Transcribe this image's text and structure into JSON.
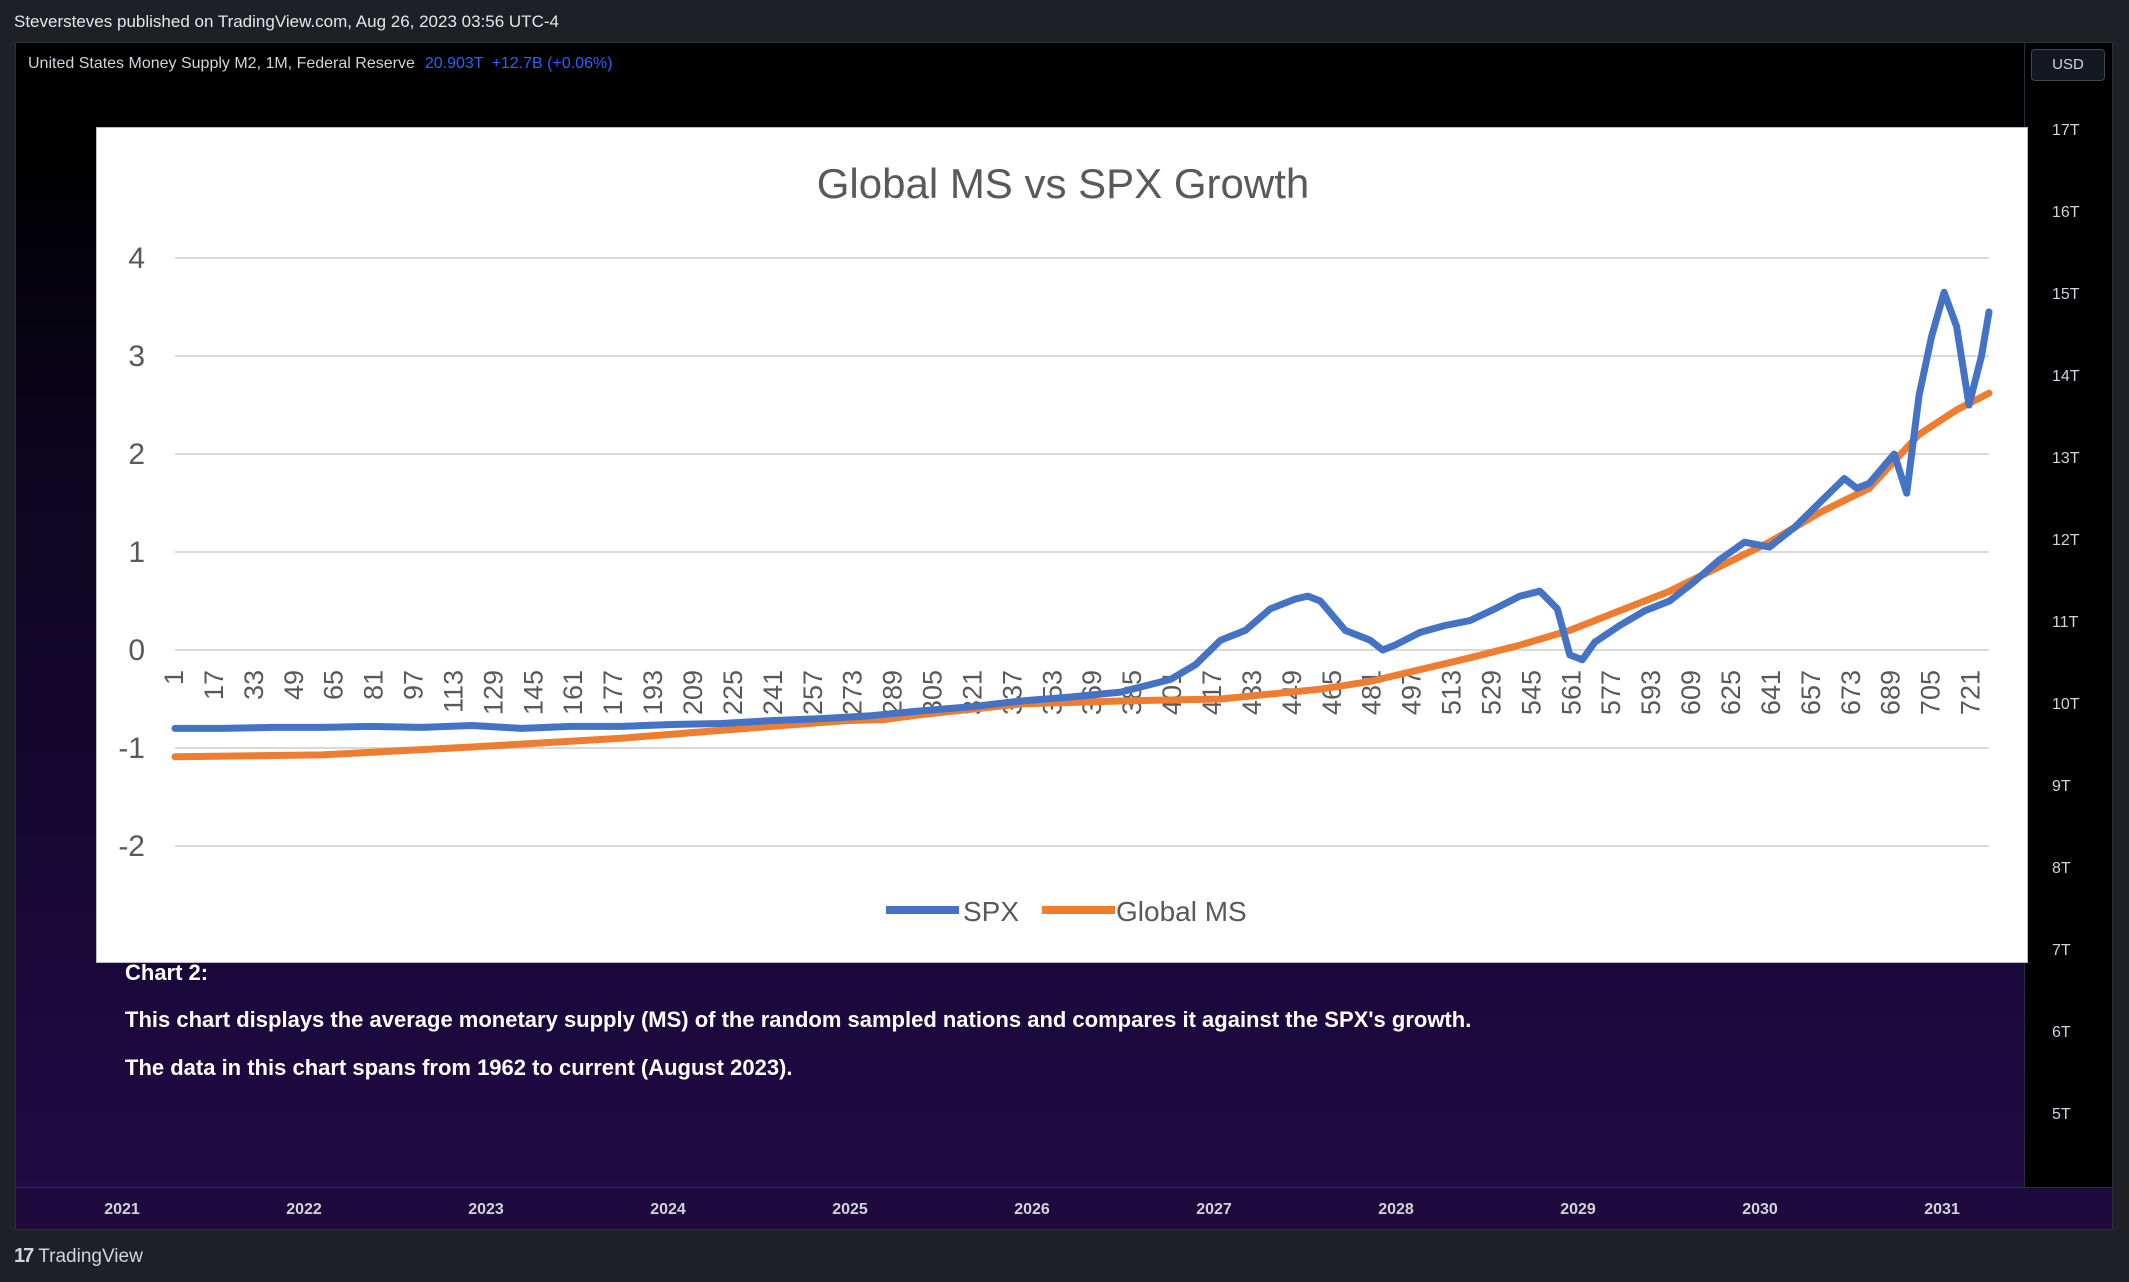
{
  "publisher": "Steversteves published on TradingView.com, Aug 26, 2023 03:56 UTC-4",
  "legend": {
    "symbol": "United States Money Supply M2, 1M, Federal Reserve",
    "value": "20.903T",
    "change": "+12.7B (+0.06%)"
  },
  "currency_button": "USD",
  "price_axis": [
    "17T",
    "16T",
    "15T",
    "14T",
    "13T",
    "12T",
    "11T",
    "10T",
    "9T",
    "8T",
    "7T",
    "6T",
    "5T"
  ],
  "time_axis": [
    "2021",
    "2022",
    "2023",
    "2024",
    "2025",
    "2026",
    "2027",
    "2028",
    "2029",
    "2030",
    "2031"
  ],
  "notes": {
    "heading": "Chart 2:",
    "line1": "This chart displays the average monetary supply (MS) of the random sampled nations and compares it against the SPX's growth.",
    "line2": "The data in this chart spans from 1962 to current (August 2023)."
  },
  "footer": {
    "logo": "17",
    "brand": "TradingView"
  },
  "colors": {
    "spx": "#4472c4",
    "ms": "#ed7d31",
    "grid": "#d9d9d9",
    "text": "#595959"
  },
  "chart_data": {
    "type": "line",
    "title": "Global MS vs SPX Growth",
    "xlabel": "",
    "ylabel": "",
    "ylim": [
      -3,
      4.5
    ],
    "yticks": [
      "4",
      "3",
      "2",
      "1",
      "0",
      "-1",
      "-2"
    ],
    "x_tick_labels": [
      "1",
      "17",
      "33",
      "49",
      "65",
      "81",
      "97",
      "113",
      "129",
      "145",
      "161",
      "177",
      "193",
      "209",
      "225",
      "241",
      "257",
      "273",
      "289",
      "305",
      "321",
      "337",
      "353",
      "369",
      "385",
      "401",
      "417",
      "433",
      "449",
      "465",
      "481",
      "497",
      "513",
      "529",
      "545",
      "561",
      "577",
      "593",
      "609",
      "625",
      "641",
      "657",
      "673",
      "689",
      "705",
      "721"
    ],
    "series": [
      {
        "name": "SPX",
        "x": [
          1,
          20,
          40,
          60,
          80,
          100,
          120,
          140,
          160,
          180,
          200,
          220,
          240,
          260,
          280,
          300,
          320,
          340,
          360,
          380,
          400,
          410,
          420,
          430,
          440,
          450,
          455,
          460,
          470,
          480,
          485,
          490,
          500,
          510,
          520,
          530,
          540,
          548,
          555,
          560,
          565,
          570,
          580,
          590,
          600,
          610,
          620,
          630,
          640,
          650,
          660,
          670,
          675,
          680,
          690,
          695,
          700,
          705,
          710,
          715,
          720,
          725,
          728
        ],
        "values": [
          -0.8,
          -0.8,
          -0.79,
          -0.79,
          -0.78,
          -0.79,
          -0.77,
          -0.8,
          -0.78,
          -0.78,
          -0.76,
          -0.75,
          -0.72,
          -0.7,
          -0.67,
          -0.62,
          -0.58,
          -0.52,
          -0.48,
          -0.43,
          -0.3,
          -0.15,
          0.1,
          0.2,
          0.42,
          0.52,
          0.55,
          0.5,
          0.2,
          0.1,
          0.0,
          0.05,
          0.18,
          0.25,
          0.3,
          0.42,
          0.55,
          0.6,
          0.42,
          -0.05,
          -0.1,
          0.08,
          0.25,
          0.4,
          0.5,
          0.7,
          0.92,
          1.1,
          1.05,
          1.25,
          1.5,
          1.75,
          1.65,
          1.7,
          2.0,
          1.6,
          2.6,
          3.2,
          3.65,
          3.3,
          2.5,
          3.0,
          3.45
        ]
      },
      {
        "name": "Global MS",
        "x": [
          1,
          60,
          120,
          180,
          240,
          270,
          285,
          300,
          340,
          380,
          420,
          460,
          480,
          500,
          520,
          540,
          560,
          580,
          600,
          620,
          640,
          660,
          680,
          700,
          715,
          728
        ],
        "values": [
          -1.09,
          -1.07,
          -0.99,
          -0.9,
          -0.78,
          -0.72,
          -0.71,
          -0.66,
          -0.55,
          -0.52,
          -0.5,
          -0.4,
          -0.32,
          -0.2,
          -0.08,
          0.05,
          0.2,
          0.4,
          0.6,
          0.85,
          1.1,
          1.4,
          1.65,
          2.2,
          2.45,
          2.62
        ]
      }
    ],
    "legend_position": "bottom-center"
  }
}
